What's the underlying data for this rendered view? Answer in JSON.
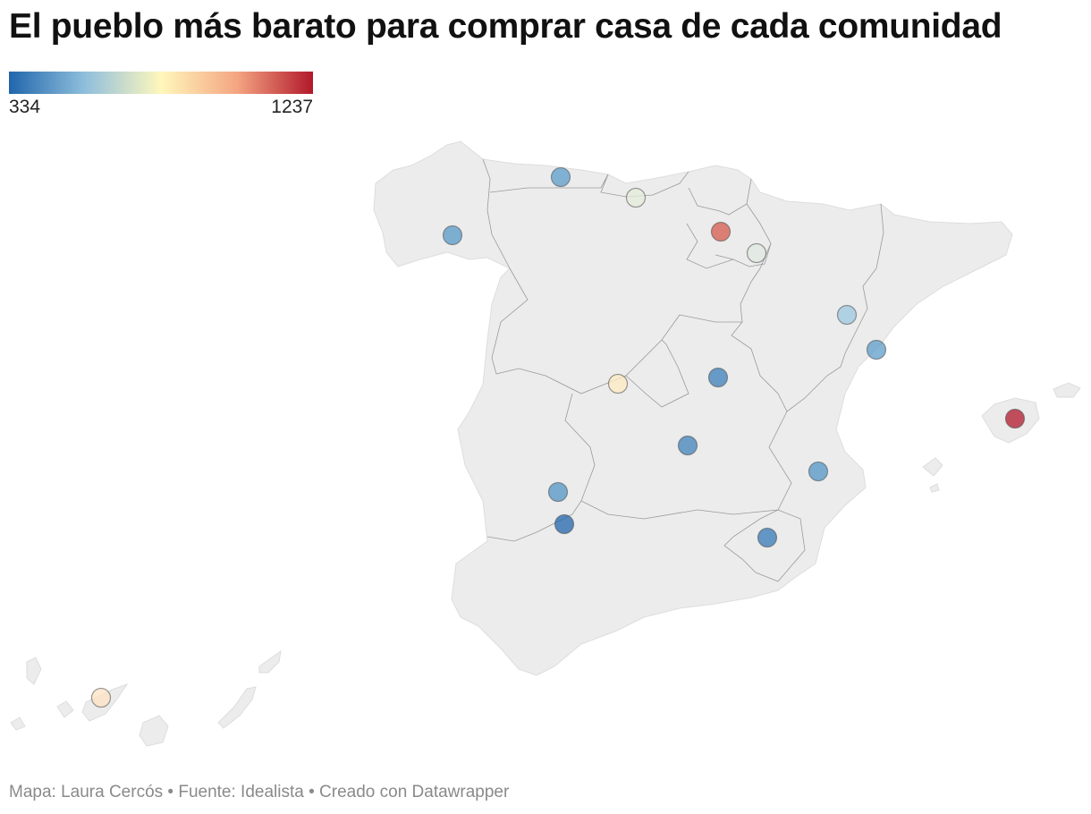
{
  "title": "El pueblo más barato para comprar casa de cada comunidad",
  "legend": {
    "min": "334",
    "max": "1237",
    "colors": [
      "#2166ac",
      "#67a9cf",
      "#d1e5f0",
      "#fff7bc",
      "#fddbc7",
      "#ef8a62",
      "#b2182b"
    ]
  },
  "map_style": {
    "land_color": "#ececec",
    "border_color": "#9a9a9a",
    "marker_stroke": "#555555"
  },
  "markers": [
    {
      "region": "Galicia",
      "value": 450
    },
    {
      "region": "Asturias",
      "value": 460
    },
    {
      "region": "Cantabria",
      "value": 700
    },
    {
      "region": "País Vasco",
      "value": 1150
    },
    {
      "region": "Navarra",
      "value": 680
    },
    {
      "region": "Castilla y León",
      "value": 390
    },
    {
      "region": "Aragón",
      "value": 560
    },
    {
      "region": "Cataluña",
      "value": 460
    },
    {
      "region": "Madrid",
      "value": 850
    },
    {
      "region": "Castilla-La Mancha",
      "value": 400
    },
    {
      "region": "Comunidad Valenciana",
      "value": 440
    },
    {
      "region": "Islas Baleares",
      "value": 1237
    },
    {
      "region": "Extremadura",
      "value": 440
    },
    {
      "region": "Andalucía",
      "value": 334
    },
    {
      "region": "Región de Murcia",
      "value": 380
    },
    {
      "region": "Islas Canarias",
      "value": 900
    }
  ],
  "footer": "Mapa: Laura Cercós • Fuente: Idealista • Creado con Datawrapper"
}
